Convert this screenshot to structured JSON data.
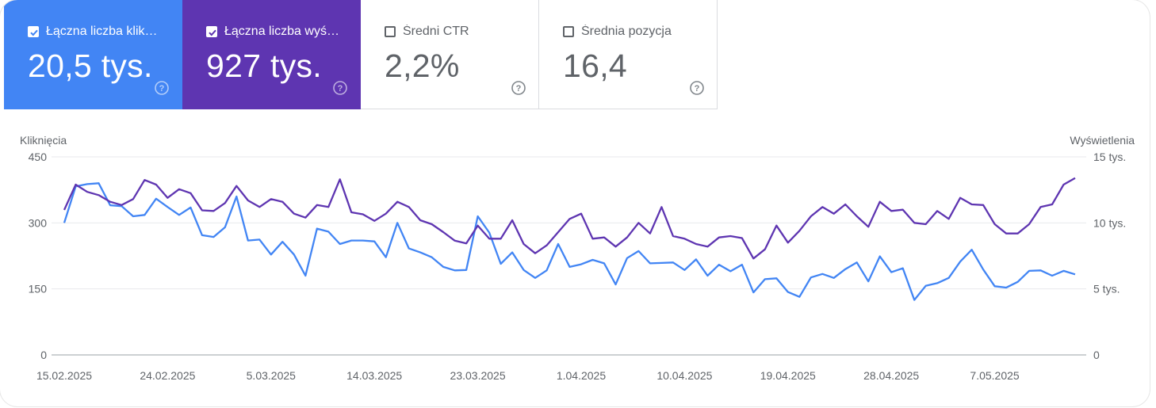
{
  "cards": [
    {
      "label": "Łączna liczba kliknięć",
      "display": "Łączna liczba klik…",
      "value": "20,5 tys.",
      "checked": true,
      "color": "#4285f4"
    },
    {
      "label": "Łączna liczba wyświetleń",
      "display": "Łączna liczba wyś…",
      "value": "927 tys.",
      "checked": true,
      "color": "#5e35b1"
    },
    {
      "label": "Średni CTR",
      "display": "Średni CTR",
      "value": "2,2%",
      "checked": false,
      "color": "#ffffff"
    },
    {
      "label": "Średnia pozycja",
      "display": "Średnia pozycja",
      "value": "16,4",
      "checked": false,
      "color": "#ffffff"
    }
  ],
  "chart_data": {
    "type": "line",
    "ylabel_left": "Kliknięcia",
    "ylabel_right": "Wyświetlenia",
    "y_left_ticks": [
      "0",
      "150",
      "300",
      "450"
    ],
    "y_left_range": [
      0,
      450
    ],
    "y_right_ticks": [
      "0",
      "5 tys.",
      "10 tys.",
      "15 tys."
    ],
    "y_right_range": [
      0,
      15000
    ],
    "x_tick_labels": [
      "15.02.2025",
      "24.02.2025",
      "5.03.2025",
      "14.03.2025",
      "23.03.2025",
      "1.04.2025",
      "10.04.2025",
      "19.04.2025",
      "28.04.2025",
      "7.05.2025"
    ],
    "x_tick_indices": [
      0,
      9,
      18,
      27,
      36,
      45,
      54,
      63,
      72,
      81
    ],
    "start_date": "15.02.2025",
    "grid": true,
    "series": [
      {
        "name": "Kliknięcia",
        "axis": "left",
        "color": "#4285f4",
        "values": [
          300,
          383,
          388,
          390,
          340,
          338,
          315,
          318,
          355,
          336,
          318,
          335,
          272,
          268,
          290,
          360,
          260,
          262,
          228,
          257,
          228,
          180,
          287,
          280,
          252,
          260,
          260,
          258,
          222,
          300,
          242,
          233,
          222,
          200,
          192,
          193,
          315,
          278,
          207,
          233,
          193,
          175,
          192,
          252,
          200,
          206,
          216,
          208,
          160,
          220,
          236,
          208,
          209,
          210,
          193,
          217,
          180,
          205,
          190,
          205,
          142,
          172,
          174,
          143,
          132,
          176,
          184,
          175,
          195,
          210,
          167,
          224,
          188,
          197,
          125,
          157,
          163,
          175,
          212,
          239,
          194,
          156,
          153,
          166,
          191,
          192,
          180,
          191,
          183
        ],
        "note": ""
      },
      {
        "name": "Wyświetlenia",
        "axis": "right",
        "color": "#5e35b1",
        "values": [
          10980,
          12900,
          12350,
          12100,
          11600,
          11350,
          11800,
          13250,
          12900,
          11900,
          12550,
          12250,
          10950,
          10900,
          11500,
          12800,
          11700,
          11200,
          11800,
          11600,
          10700,
          10400,
          11350,
          11200,
          13300,
          10800,
          10650,
          10150,
          10700,
          11600,
          11200,
          10200,
          9900,
          9300,
          8650,
          8450,
          9800,
          8800,
          8800,
          10200,
          8400,
          7700,
          8300,
          9300,
          10300,
          10700,
          8800,
          8900,
          8200,
          8900,
          10000,
          9200,
          11200,
          9000,
          8800,
          8400,
          8200,
          8900,
          9000,
          8850,
          7300,
          8000,
          9800,
          8500,
          9400,
          10500,
          11200,
          10700,
          11400,
          10500,
          9700,
          11600,
          10900,
          11000,
          10000,
          9900,
          10900,
          10300,
          11900,
          11400,
          11350,
          9900,
          9200,
          9200,
          9900,
          11200,
          11400,
          12900,
          13400
        ]
      }
    ]
  }
}
